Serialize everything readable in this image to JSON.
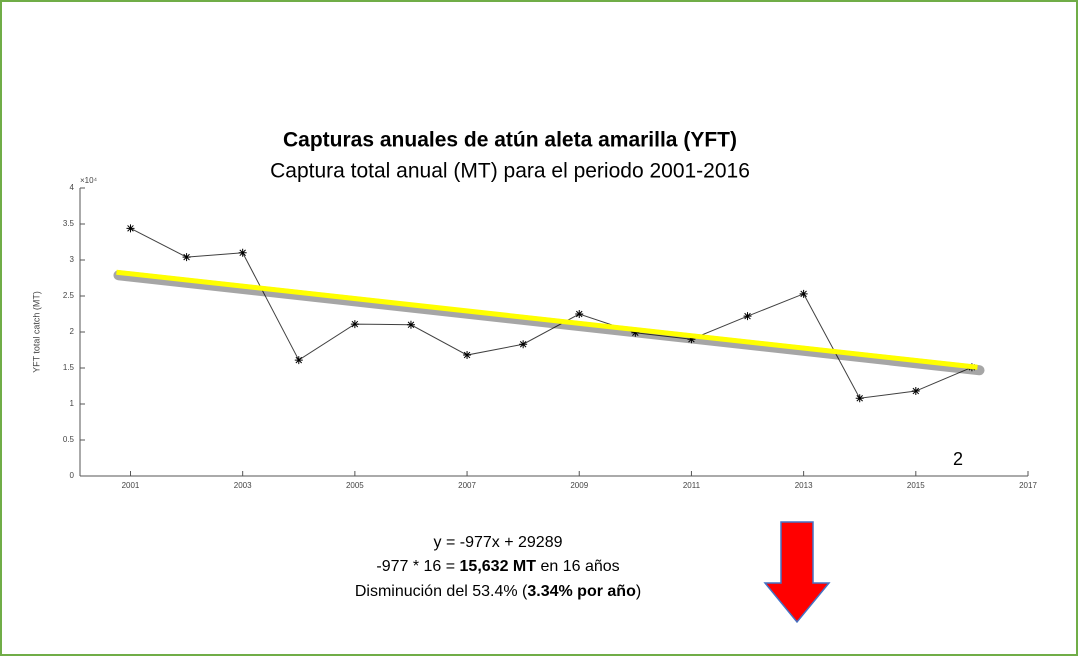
{
  "chart_data": {
    "type": "line",
    "title": "Capturas anuales de atún aleta amarilla (YFT)",
    "subtitle": "Captura total anual (MT) para el periodo 2001-2016",
    "ylabel": "YFT total catch (MT)",
    "y_exponent": "×10⁴",
    "x": [
      2001,
      2002,
      2003,
      2004,
      2005,
      2006,
      2007,
      2008,
      2009,
      2010,
      2011,
      2012,
      2013,
      2014,
      2015,
      2016
    ],
    "series": [
      {
        "color": "#404040",
        "values": [
          3.44,
          3.04,
          3.1,
          1.61,
          2.11,
          2.1,
          1.68,
          1.83,
          2.25,
          1.99,
          1.9,
          2.22,
          2.53,
          1.08,
          1.18,
          1.51
        ]
      }
    ],
    "trend": {
      "x": [
        2000.75,
        2016.1
      ],
      "values": [
        2.83,
        1.51
      ],
      "color": "#ffff00"
    },
    "xlim": [
      2000.1,
      2017
    ],
    "xticks": [
      2001,
      2003,
      2005,
      2007,
      2009,
      2011,
      2013,
      2015,
      2017
    ],
    "ylim": [
      0,
      4
    ],
    "yticks": [
      0,
      0.5,
      1,
      1.5,
      2,
      2.5,
      3,
      3.5,
      4
    ],
    "annotation": "2",
    "equation": "y = -977x + 29289",
    "line2": [
      "-977 * 16 = ",
      "15,632 MT",
      " en 16 años"
    ],
    "line3": [
      "Disminución del 53.4% (",
      "3.34% por año",
      ")"
    ]
  }
}
